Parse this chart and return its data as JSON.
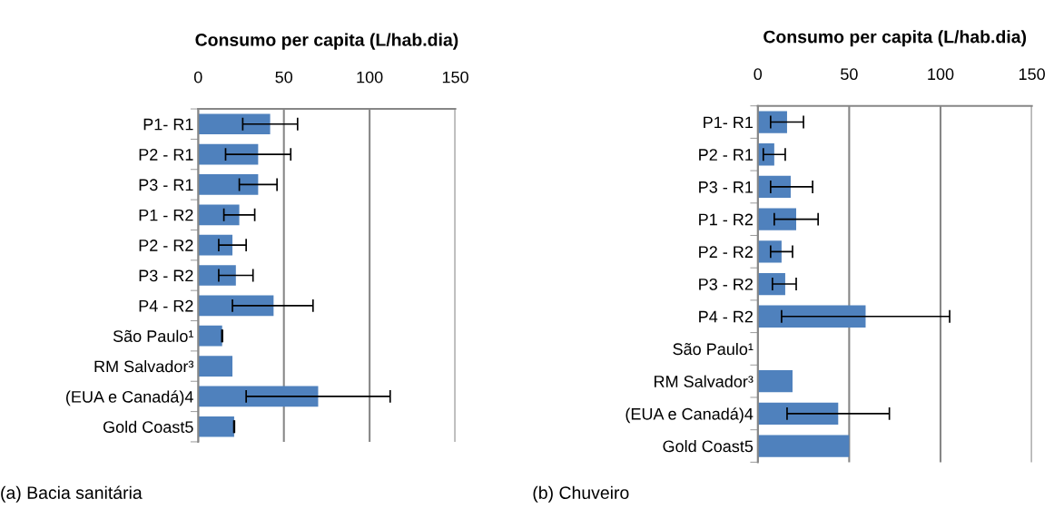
{
  "chart_data": [
    {
      "type": "bar",
      "orientation": "horizontal",
      "title": "Consumo per capita (L/hab.dia)",
      "categories": [
        "P1- R1",
        "P2 - R1",
        "P3 - R1",
        "P1 - R2",
        "P2 - R2",
        "P3 - R2",
        "P4 - R2",
        "São Paulo¹",
        "RM Salvador³",
        "(EUA e Canadá)4",
        "Gold Coast5"
      ],
      "values": [
        42,
        35,
        35,
        24,
        20,
        22,
        44,
        14,
        20,
        70,
        21
      ],
      "errors": [
        [
          26,
          58
        ],
        [
          16,
          54
        ],
        [
          24,
          46
        ],
        [
          15,
          33
        ],
        [
          12,
          28
        ],
        [
          12,
          32
        ],
        [
          20,
          67
        ],
        [
          13.8,
          14.2
        ],
        null,
        [
          28,
          112
        ],
        [
          20.8,
          21.2
        ]
      ],
      "color": "#4f81bd",
      "xlim": [
        0,
        150
      ],
      "xticks": [
        0,
        50,
        100,
        150
      ],
      "grid": "x",
      "annotations": [
        "(a) Bacia sanitária"
      ]
    },
    {
      "type": "bar",
      "orientation": "horizontal",
      "title": "Consumo per capita (L/hab.dia)",
      "categories": [
        "P1- R1",
        "P2 - R1",
        "P3 - R1",
        "P1 - R2",
        "P2 - R2",
        "P3 - R2",
        "P4 - R2",
        "São Paulo¹",
        "RM Salvador³",
        "(EUA e Canadá)4",
        "Gold Coast5"
      ],
      "values": [
        16,
        9,
        18,
        21,
        13,
        15,
        59,
        null,
        19,
        44,
        50
      ],
      "errors": [
        [
          7,
          25
        ],
        [
          3,
          15
        ],
        [
          7,
          30
        ],
        [
          9,
          33
        ],
        [
          7,
          19
        ],
        [
          8,
          21
        ],
        [
          13,
          105
        ],
        null,
        null,
        [
          16,
          72
        ],
        null
      ],
      "color": "#4f81bd",
      "xlim": [
        0,
        150
      ],
      "xticks": [
        0,
        50,
        100,
        150
      ],
      "grid": "x",
      "annotations": [
        "(b) Chuveiro"
      ]
    }
  ]
}
